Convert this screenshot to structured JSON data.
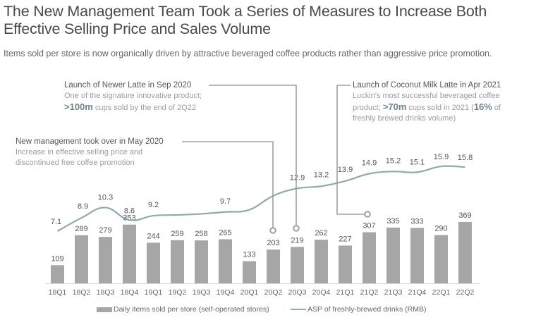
{
  "header": {
    "title": "The New Management Team Took a Series of Measures to Increase Both Effective Selling Price and Sales Volume",
    "subtitle": "Items sold per store is now organically driven by attractive beveraged coffee products rather than aggressive price promotion."
  },
  "annotations": {
    "newer_latte": {
      "heading": "Launch of Newer Latte in Sep 2020",
      "line1": "One of the signature innovative product;",
      "highlight": ">100m",
      "line2_rest": " cups sold by the end of 2Q22",
      "points_to": "20Q3"
    },
    "new_management": {
      "heading": "New management took over in May 2020",
      "line1": "Increase in effective selling price and",
      "line2": "discontinued free coffee promotion",
      "points_to": "20Q2"
    },
    "coconut_latte": {
      "heading": "Launch of Coconut Milk Latte in Apr 2021",
      "line1": "Luckin's most successful beveraged coffee",
      "line2_pre": "product; ",
      "highlight1": ">70m",
      "line2_mid": " cups sold in 2021 (",
      "highlight2": "16%",
      "line2_post": " of",
      "line3": "freshly brewed drinks volume)",
      "points_to": "21Q2"
    }
  },
  "colors": {
    "bar": "#a6a6a6",
    "line": "#8fa9ad",
    "callout": "#a0a0a0",
    "axis": "#d9d9d9"
  },
  "chart_data": {
    "type": "bar",
    "title": "The New Management Team Took a Series of Measures to Increase Both Effective Selling Price and Sales Volume",
    "categories": [
      "18Q1",
      "18Q2",
      "18Q3",
      "18Q4",
      "19Q1",
      "19Q2",
      "19Q3",
      "19Q4",
      "20Q1",
      "20Q2",
      "20Q3",
      "20Q4",
      "21Q1",
      "21Q2",
      "21Q3",
      "21Q4",
      "22Q1",
      "22Q2"
    ],
    "series": [
      {
        "name": "Daily items sold per store (self-operated stores)",
        "type": "bar",
        "values": [
          109,
          289,
          279,
          353,
          244,
          259,
          258,
          265,
          133,
          203,
          219,
          262,
          227,
          307,
          335,
          333,
          290,
          369
        ]
      },
      {
        "name": "ASP of freshly-brewed drinks (RMB)",
        "type": "line",
        "categories": [
          "18Q1",
          "18Q2",
          "18Q3",
          "18Q4",
          "19Q1",
          "19Q4",
          "20Q3",
          "20Q4",
          "21Q1",
          "21Q2",
          "21Q3",
          "21Q4",
          "22Q1",
          "22Q2"
        ],
        "values": [
          7.1,
          8.9,
          10.3,
          8.6,
          9.2,
          9.7,
          12.9,
          13.2,
          13.9,
          14.9,
          15.2,
          15.1,
          15.9,
          15.8
        ]
      }
    ],
    "xlabel": "",
    "ylabel": "",
    "grid": false,
    "legend": "bottom"
  }
}
